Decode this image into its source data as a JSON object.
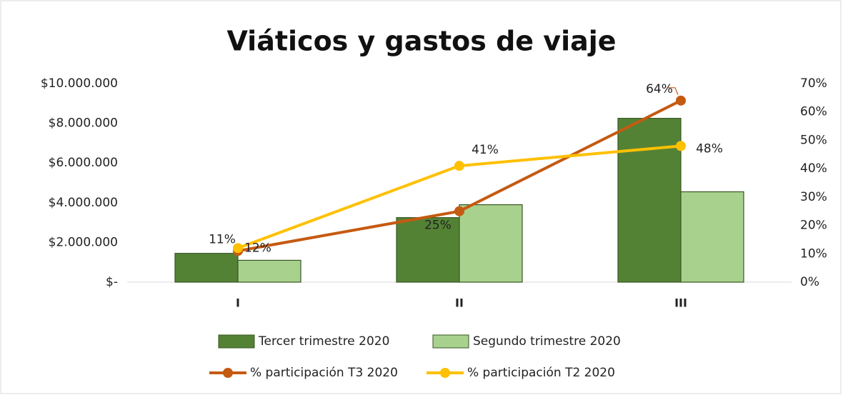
{
  "chart_data": {
    "type": "bar",
    "title": "Viáticos y gastos de viaje",
    "categories": [
      "I",
      "II",
      "III"
    ],
    "series": [
      {
        "name": "Tercer trimestre 2020",
        "color": "#548235",
        "values": [
          1450000,
          3250000,
          8250000
        ]
      },
      {
        "name": "Segundo trimestre 2020",
        "color": "#a9d18e",
        "values": [
          1100000,
          3900000,
          4550000
        ]
      },
      {
        "name": "% participación T3 2020",
        "type": "line",
        "axis": "y2",
        "color": "#c55a11",
        "values": [
          11,
          25,
          64
        ],
        "value_labels": [
          "11%",
          "25%",
          "64%"
        ]
      },
      {
        "name": "% participación T2 2020",
        "type": "line",
        "axis": "y2",
        "color": "#ffc000",
        "values": [
          12,
          41,
          48
        ],
        "value_labels": [
          "12%",
          "41%",
          "48%"
        ]
      }
    ],
    "ylim": [
      0,
      10000000
    ],
    "yticks": [
      {
        "value": 0,
        "label": "$-"
      },
      {
        "value": 2000000,
        "label": "$2.000.000"
      },
      {
        "value": 4000000,
        "label": "$4.000.000"
      },
      {
        "value": 6000000,
        "label": "$6.000.000"
      },
      {
        "value": 8000000,
        "label": "$8.000.000"
      },
      {
        "value": 10000000,
        "label": "$10.000.000"
      }
    ],
    "y2lim": [
      0,
      70
    ],
    "y2ticks": [
      {
        "value": 0,
        "label": "0%"
      },
      {
        "value": 10,
        "label": "10%"
      },
      {
        "value": 20,
        "label": "20%"
      },
      {
        "value": 30,
        "label": "30%"
      },
      {
        "value": 40,
        "label": "40%"
      },
      {
        "value": 50,
        "label": "50%"
      },
      {
        "value": 60,
        "label": "60%"
      },
      {
        "value": 70,
        "label": "70%"
      }
    ],
    "legend": "bottom"
  }
}
